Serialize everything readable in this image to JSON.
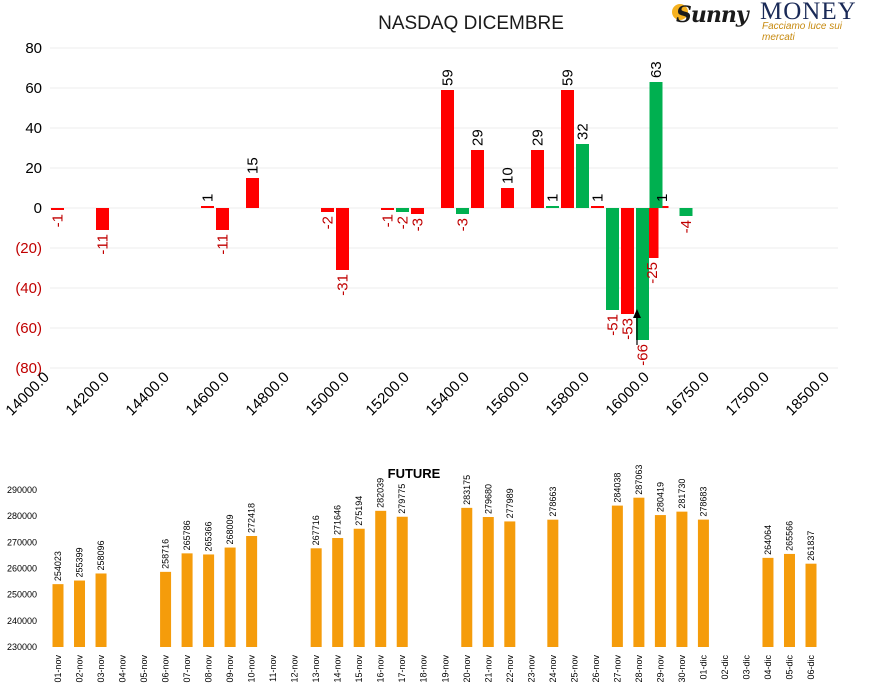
{
  "logo": {
    "sunny": "Sunny",
    "money": "MONEY",
    "tagline": "Facciamo luce sui mercati"
  },
  "chart_data": [
    {
      "type": "bar",
      "title": "NASDAQ DICEMBRE",
      "categories": [
        "14000.0",
        "14200.0",
        "14400.0",
        "14600.0",
        "14800.0",
        "15000.0",
        "15200.0",
        "15400.0",
        "15600.0",
        "15800.0",
        "16000.0",
        "16750.0",
        "17500.0",
        "18500.0"
      ],
      "series": [
        {
          "color": "#ff0000",
          "points": [
            {
              "x": 14025,
              "y": -1
            },
            {
              "x": 14175,
              "y": -11
            },
            {
              "x": 14525,
              "y": 1
            },
            {
              "x": 14575,
              "y": -11
            },
            {
              "x": 14675,
              "y": 15
            },
            {
              "x": 14925,
              "y": -2
            },
            {
              "x": 14975,
              "y": -31
            },
            {
              "x": 15125,
              "y": -1
            },
            {
              "x": 15225,
              "y": -3
            },
            {
              "x": 15325,
              "y": 59
            },
            {
              "x": 15425,
              "y": 29
            },
            {
              "x": 15525,
              "y": 10
            },
            {
              "x": 15625,
              "y": 29
            },
            {
              "x": 15725,
              "y": 59
            },
            {
              "x": 15825,
              "y": 1
            },
            {
              "x": 15925,
              "y": -53
            },
            {
              "x": 16025,
              "y": -25
            },
            {
              "x": 16150,
              "y": 1
            }
          ]
        },
        {
          "color": "#00b050",
          "points": [
            {
              "x": 15175,
              "y": -2
            },
            {
              "x": 15375,
              "y": -3
            },
            {
              "x": 15675,
              "y": 1
            },
            {
              "x": 15775,
              "y": 32
            },
            {
              "x": 15875,
              "y": -51
            },
            {
              "x": 15975,
              "y": -66
            },
            {
              "x": 16075,
              "y": 63
            },
            {
              "x": 16450,
              "y": -4
            }
          ]
        }
      ],
      "yticks": [
        "80",
        "60",
        "40",
        "20",
        "0",
        "(20)",
        "(40)",
        "(60)",
        "(80)"
      ],
      "ylim": [
        -80,
        80
      ],
      "grid": true,
      "colors": {
        "positive_label": "#000000",
        "negative_label": "#c00000"
      }
    },
    {
      "type": "bar",
      "title": "FUTURE",
      "categories": [
        "01-nov",
        "02-nov",
        "03-nov",
        "04-nov",
        "05-nov",
        "06-nov",
        "07-nov",
        "08-nov",
        "09-nov",
        "10-nov",
        "11-nov",
        "12-nov",
        "13-nov",
        "14-nov",
        "15-nov",
        "16-nov",
        "17-nov",
        "18-nov",
        "19-nov",
        "20-nov",
        "21-nov",
        "22-nov",
        "23-nov",
        "24-nov",
        "25-nov",
        "26-nov",
        "27-nov",
        "28-nov",
        "29-nov",
        "30-nov",
        "01-dic",
        "02-dic",
        "03-dic",
        "04-dic",
        "05-dic",
        "06-dic"
      ],
      "values": [
        254023,
        255399,
        258096,
        null,
        null,
        258716,
        265786,
        265366,
        268009,
        272418,
        null,
        null,
        267716,
        271646,
        275194,
        282039,
        279775,
        null,
        null,
        283175,
        279680,
        277989,
        null,
        278663,
        null,
        null,
        284038,
        287063,
        280419,
        281730,
        278683,
        null,
        null,
        264064,
        265566,
        261837
      ],
      "yticks": [
        "290000",
        "280000",
        "270000",
        "260000",
        "250000",
        "240000",
        "230000"
      ],
      "ylim": [
        230000,
        290000
      ],
      "color": "#f59c0b"
    }
  ]
}
